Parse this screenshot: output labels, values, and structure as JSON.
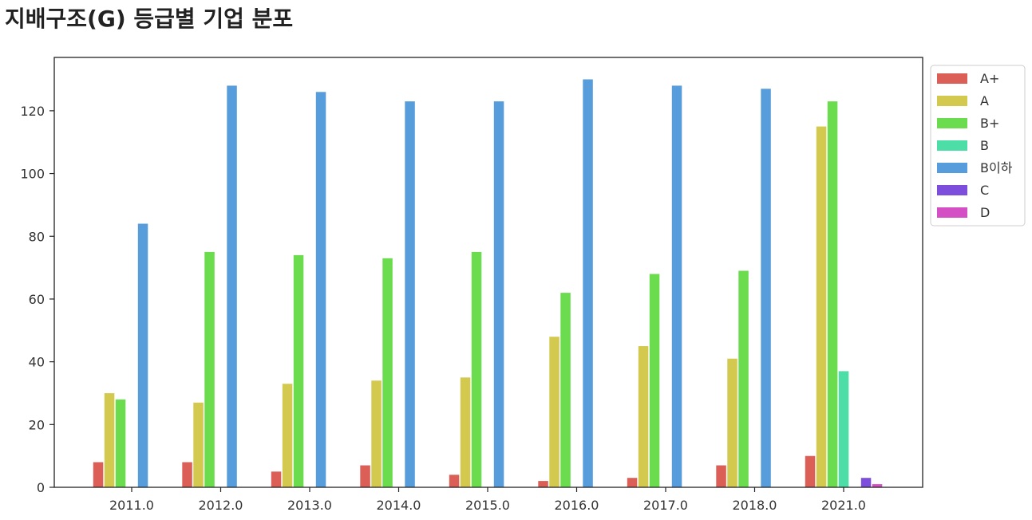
{
  "chart_data": {
    "type": "bar",
    "title": "지배구조(G) 등급별 기업 분포",
    "xlabel": "",
    "ylabel": "",
    "ylim": [
      0,
      137
    ],
    "yticks": [
      0,
      20,
      40,
      60,
      80,
      100,
      120
    ],
    "categories": [
      "2011.0",
      "2012.0",
      "2013.0",
      "2014.0",
      "2015.0",
      "2016.0",
      "2017.0",
      "2018.0",
      "2021.0"
    ],
    "grid": false,
    "legend_position": "outside-top-right",
    "series": [
      {
        "name": "A+",
        "color": "#db5f57",
        "values": [
          8,
          8,
          5,
          7,
          4,
          2,
          3,
          7,
          10
        ]
      },
      {
        "name": "A",
        "color": "#d3c94f",
        "values": [
          30,
          27,
          33,
          34,
          35,
          48,
          45,
          41,
          115
        ]
      },
      {
        "name": "B+",
        "color": "#6bdc4e",
        "values": [
          28,
          75,
          74,
          73,
          75,
          62,
          68,
          69,
          123
        ]
      },
      {
        "name": "B",
        "color": "#4ddda6",
        "values": [
          0,
          0,
          0,
          0,
          0,
          0,
          0,
          0,
          37
        ]
      },
      {
        "name": "B이하",
        "color": "#579ddb",
        "values": [
          84,
          128,
          126,
          123,
          123,
          130,
          128,
          127,
          0
        ]
      },
      {
        "name": "C",
        "color": "#7d4ddb",
        "values": [
          0,
          0,
          0,
          0,
          0,
          0,
          0,
          0,
          3
        ]
      },
      {
        "name": "D",
        "color": "#d54fc4",
        "values": [
          0,
          0,
          0,
          0,
          0,
          0,
          0,
          0,
          1
        ]
      }
    ]
  }
}
